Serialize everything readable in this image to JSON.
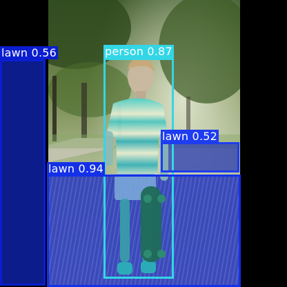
{
  "image": {
    "subject": "boy-holding-skateboard-on-lawn"
  },
  "detections": [
    {
      "label": "lawn",
      "score": "0.56",
      "text": "lawn 0.56",
      "color": "#0a1ecf"
    },
    {
      "label": "person",
      "score": "0.87",
      "text": "person 0.87",
      "color": "#33d6e6"
    },
    {
      "label": "lawn",
      "score": "0.52",
      "text": "lawn 0.52",
      "color": "#1e3cf0"
    },
    {
      "label": "lawn",
      "score": "0.94",
      "text": "lawn 0.94",
      "color": "#1430e8"
    }
  ],
  "colors": {
    "lawn_mask": "#1a2aa8",
    "person_mask": "#2aa8c8",
    "background": "#000000"
  }
}
